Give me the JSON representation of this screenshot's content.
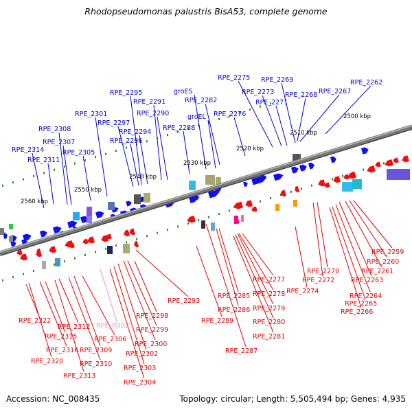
{
  "title": "Rhodopseudomonas palustris BisA53, complete genome",
  "accession": "Accession: NC_008435",
  "summary": "Topology: circular; Length: 5,505,494 bp; Genes: 4,935",
  "colors": {
    "forward_label": "#0000cc",
    "reverse_label": "#dd0000",
    "rna_label": "#ff88cc",
    "forward_gene": "#1010ee",
    "reverse_gene": "#ee1010",
    "backbone": "#777777",
    "tick": "#1a8a1a"
  },
  "scale": {
    "tick_labels": [
      "2500 kbp",
      "2510 kbp",
      "2520 kbp",
      "2530 kbp",
      "2540 kbp",
      "2550 kbp",
      "2560 kbp"
    ]
  },
  "forward_labels": [
    "RPE_2262",
    "RPE_2267",
    "RPE_2268",
    "RPE_2269",
    "RPE_2271",
    "RPE_2273",
    "RPE_2275",
    "RPE_2276",
    "RPE_2282",
    "groEL",
    "groES",
    "RPE_2288",
    "RPE_2290",
    "RPE_2291",
    "RPE_2294",
    "RPE_2295",
    "RPE_2296",
    "RPE_2297",
    "RPE_2301",
    "RPE_2305",
    "RPE_2307",
    "RPE_2308",
    "RPE_2311",
    "RPE_2314"
  ],
  "reverse_labels": [
    "RPE_2259",
    "RPE_2260",
    "RPE_2261",
    "RPE_2263",
    "RPE_2264",
    "RPE_2265",
    "RPE_2266",
    "RPE_2270",
    "RPE_2272",
    "RPE_2274",
    "RPE_2277",
    "RPE_2278",
    "RPE_2279",
    "RPE_2280",
    "RPE_2281",
    "RPE_2285",
    "RPE_2286",
    "RPE_2287",
    "RPE_2289",
    "RPE_2293",
    "RPE_2298",
    "RPE_2299",
    "RPE_2300",
    "RPE_2302",
    "RPE_2303",
    "RPE_2304",
    "RPE_2306",
    "RPE_R0029",
    "RPE_2309",
    "RPE_2310",
    "RPE_2312",
    "RPE_2313",
    "RPE_2315",
    "RPE_2316",
    "RPE_2320",
    "RPE_2322"
  ]
}
